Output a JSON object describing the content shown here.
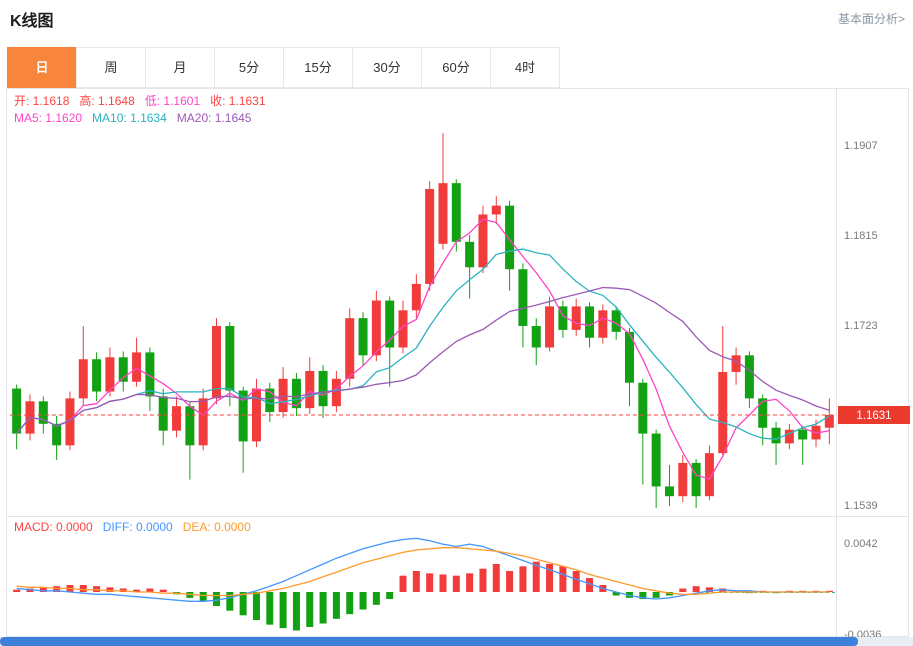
{
  "page": {
    "title": "K线图",
    "more_link": "基本面分析>"
  },
  "tabs": {
    "items": [
      {
        "label": "日",
        "active": true
      },
      {
        "label": "周",
        "active": false
      },
      {
        "label": "月",
        "active": false
      },
      {
        "label": "5分",
        "active": false
      },
      {
        "label": "15分",
        "active": false
      },
      {
        "label": "30分",
        "active": false
      },
      {
        "label": "60分",
        "active": false
      },
      {
        "label": "4时",
        "active": false
      }
    ]
  },
  "legend": {
    "ohlc": [
      {
        "label": "开",
        "value": "1.1618",
        "color": "#ff4242"
      },
      {
        "label": "高",
        "value": "1.1648",
        "color": "#ff4242"
      },
      {
        "label": "低",
        "value": "1.1601",
        "color": "#ff44c8"
      },
      {
        "label": "收",
        "value": "1.1631",
        "color": "#ff4242"
      }
    ],
    "ma": [
      {
        "label": "MA5",
        "value": "1.1620",
        "color": "#ff44c8"
      },
      {
        "label": "MA10",
        "value": "1.1634",
        "color": "#2bb3c0"
      },
      {
        "label": "MA20",
        "value": "1.1645",
        "color": "#9b59b6"
      }
    ],
    "macd": [
      {
        "label": "MACD",
        "value": "0.0000",
        "color": "#ff4242"
      },
      {
        "label": "DIFF",
        "value": "0.0000",
        "color": "#4596ff"
      },
      {
        "label": "DEA",
        "value": "0.0000",
        "color": "#ff9a2e"
      }
    ]
  },
  "chart_data": {
    "type": "candlestick",
    "title": "K线图",
    "interval_selected": "日",
    "price_ticks": [
      "1.1907",
      "1.1815",
      "1.1723",
      "1.1631",
      "1.1539"
    ],
    "current_price": "1.1631",
    "macd_ticks": [
      "0.0042",
      "-0.0036"
    ],
    "colors": {
      "up": "#f23c3c",
      "down": "#12a112",
      "ma5": "#ff44c8",
      "ma10": "#2bb3c0",
      "ma20": "#9b59b6",
      "diff": "#4596ff",
      "dea": "#ff9a2e",
      "price_line": "#ff4040",
      "price_tag_bg": "#ea3b2e",
      "axis_text": "#7a7a7a",
      "border": "#e5e5e5",
      "zero_line": "#2fbf71"
    },
    "candles": [
      [
        1.1658,
        1.1662,
        1.1596,
        1.1612
      ],
      [
        1.1612,
        1.1652,
        1.1605,
        1.1645
      ],
      [
        1.1645,
        1.165,
        1.1612,
        1.1622
      ],
      [
        1.1622,
        1.163,
        1.1585,
        1.16
      ],
      [
        1.16,
        1.1655,
        1.1595,
        1.1648
      ],
      [
        1.1648,
        1.1722,
        1.164,
        1.1688
      ],
      [
        1.1688,
        1.1695,
        1.1645,
        1.1655
      ],
      [
        1.1655,
        1.17,
        1.165,
        1.169
      ],
      [
        1.169,
        1.1696,
        1.1655,
        1.1665
      ],
      [
        1.1665,
        1.171,
        1.166,
        1.1695
      ],
      [
        1.1695,
        1.17,
        1.1635,
        1.165
      ],
      [
        1.165,
        1.1658,
        1.16,
        1.1615
      ],
      [
        1.1615,
        1.165,
        1.1608,
        1.164
      ],
      [
        1.164,
        1.1645,
        1.1565,
        1.16
      ],
      [
        1.16,
        1.1658,
        1.1595,
        1.1648
      ],
      [
        1.1648,
        1.173,
        1.1642,
        1.1722
      ],
      [
        1.1722,
        1.1726,
        1.164,
        1.1656
      ],
      [
        1.1656,
        1.166,
        1.1572,
        1.1604
      ],
      [
        1.1604,
        1.1668,
        1.1598,
        1.1658
      ],
      [
        1.1658,
        1.1664,
        1.1624,
        1.1634
      ],
      [
        1.1634,
        1.168,
        1.1628,
        1.1668
      ],
      [
        1.1668,
        1.1674,
        1.163,
        1.1638
      ],
      [
        1.1638,
        1.169,
        1.1632,
        1.1676
      ],
      [
        1.1676,
        1.1682,
        1.1628,
        1.164
      ],
      [
        1.164,
        1.1676,
        1.1634,
        1.1668
      ],
      [
        1.1668,
        1.174,
        1.166,
        1.173
      ],
      [
        1.173,
        1.1736,
        1.1682,
        1.1692
      ],
      [
        1.1692,
        1.1758,
        1.1686,
        1.1748
      ],
      [
        1.1748,
        1.1752,
        1.166,
        1.17
      ],
      [
        1.17,
        1.1748,
        1.1694,
        1.1738
      ],
      [
        1.1738,
        1.1775,
        1.173,
        1.1765
      ],
      [
        1.1765,
        1.187,
        1.1758,
        1.1862
      ],
      [
        1.1806,
        1.1919,
        1.18,
        1.1868
      ],
      [
        1.1868,
        1.1872,
        1.1798,
        1.1808
      ],
      [
        1.1808,
        1.1815,
        1.175,
        1.1782
      ],
      [
        1.1782,
        1.1845,
        1.1776,
        1.1836
      ],
      [
        1.1836,
        1.1855,
        1.1826,
        1.1845
      ],
      [
        1.1845,
        1.185,
        1.1758,
        1.178
      ],
      [
        1.178,
        1.1786,
        1.17,
        1.1722
      ],
      [
        1.1722,
        1.173,
        1.1682,
        1.17
      ],
      [
        1.17,
        1.1752,
        1.1696,
        1.1742
      ],
      [
        1.1742,
        1.1748,
        1.171,
        1.1718
      ],
      [
        1.1718,
        1.175,
        1.1712,
        1.1742
      ],
      [
        1.1742,
        1.1746,
        1.17,
        1.171
      ],
      [
        1.171,
        1.1744,
        1.1704,
        1.1738
      ],
      [
        1.1738,
        1.1742,
        1.1708,
        1.1716
      ],
      [
        1.1716,
        1.172,
        1.164,
        1.1664
      ],
      [
        1.1664,
        1.1668,
        1.156,
        1.1612
      ],
      [
        1.1612,
        1.1616,
        1.1536,
        1.1558
      ],
      [
        1.1558,
        1.158,
        1.1538,
        1.1548
      ],
      [
        1.1548,
        1.159,
        1.1542,
        1.1582
      ],
      [
        1.1582,
        1.1586,
        1.1536,
        1.1548
      ],
      [
        1.1548,
        1.16,
        1.1544,
        1.1592
      ],
      [
        1.1592,
        1.1722,
        1.1588,
        1.1675
      ],
      [
        1.1675,
        1.17,
        1.1662,
        1.1692
      ],
      [
        1.1692,
        1.1696,
        1.1638,
        1.1648
      ],
      [
        1.1648,
        1.1652,
        1.16,
        1.1618
      ],
      [
        1.1618,
        1.1624,
        1.158,
        1.1602
      ],
      [
        1.1602,
        1.1622,
        1.1596,
        1.1616
      ],
      [
        1.1616,
        1.162,
        1.158,
        1.1606
      ],
      [
        1.1606,
        1.1626,
        1.1598,
        1.162
      ],
      [
        1.1618,
        1.1648,
        1.1601,
        1.1631
      ]
    ],
    "macd": {
      "scale": 0.0001,
      "hist": [
        2,
        3,
        4,
        5,
        6,
        6,
        5,
        4,
        3,
        2,
        3,
        2,
        -2,
        -5,
        -8,
        -12,
        -16,
        -20,
        -24,
        -28,
        -31,
        -33,
        -30,
        -27,
        -23,
        -19,
        -15,
        -11,
        -6,
        14,
        18,
        16,
        15,
        14,
        16,
        20,
        24,
        18,
        22,
        26,
        24,
        22,
        18,
        12,
        6,
        -3,
        -5,
        -6,
        -5,
        -3,
        3,
        5,
        4,
        3,
        1,
        -1,
        1,
        -1,
        1,
        1,
        1,
        1
      ],
      "diff": [
        3,
        2,
        1,
        1,
        0,
        -1,
        -2,
        -2,
        -3,
        -4,
        -5,
        -6,
        -7,
        -8,
        -8,
        -7,
        -5,
        -2,
        1,
        5,
        9,
        14,
        19,
        24,
        29,
        33,
        37,
        40,
        43,
        45,
        46,
        44,
        41,
        39,
        41,
        39,
        35,
        31,
        27,
        23,
        19,
        15,
        11,
        7,
        3,
        0,
        -3,
        -5,
        -6,
        -5,
        -3,
        -1,
        1,
        2,
        1,
        1,
        0,
        0,
        0,
        0,
        0,
        0
      ],
      "dea": [
        5,
        4,
        4,
        3,
        3,
        2,
        2,
        1,
        1,
        0,
        0,
        -1,
        -1,
        -2,
        -3,
        -3,
        -3,
        -2,
        -1,
        1,
        3,
        6,
        9,
        13,
        17,
        21,
        25,
        28,
        31,
        34,
        36,
        37,
        38,
        38,
        37,
        36,
        35,
        33,
        31,
        28,
        25,
        22,
        19,
        15,
        12,
        9,
        6,
        3,
        1,
        -1,
        -2,
        -2,
        -1,
        0,
        0,
        0,
        0,
        0,
        0,
        0,
        0,
        0
      ]
    }
  }
}
